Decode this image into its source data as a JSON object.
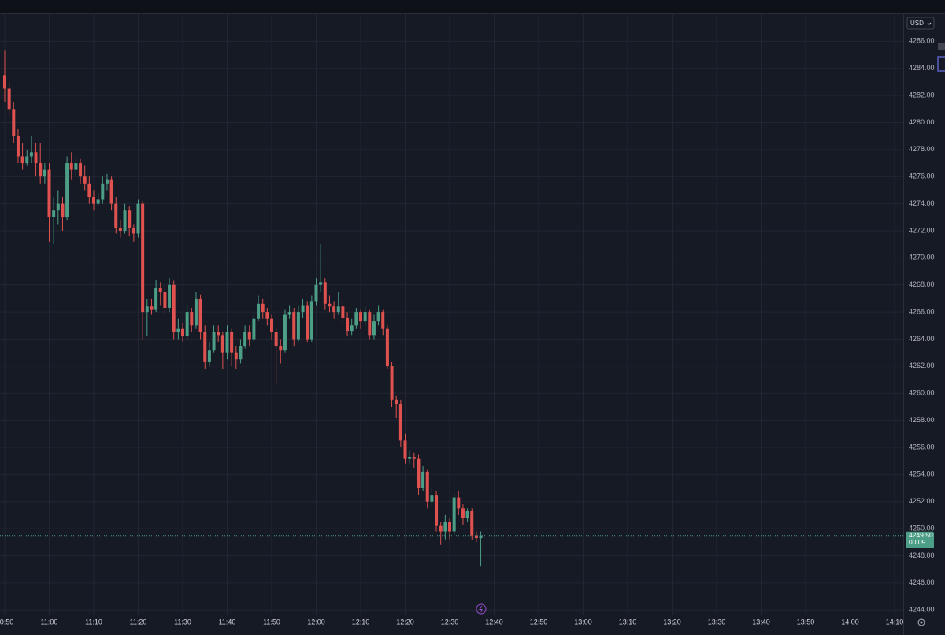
{
  "chart_data": {
    "type": "candlestick",
    "currency": "USD",
    "up_color": "#4c9e86",
    "down_color": "#e0524f",
    "grid": true,
    "ylim": [
      4242.5,
      4288
    ],
    "yticks": [
      {
        "value": 4244,
        "label": "4244.00"
      },
      {
        "value": 4246,
        "label": "4246.00"
      },
      {
        "value": 4248,
        "label": "4248.00"
      },
      {
        "value": 4250,
        "label": "4250.00"
      },
      {
        "value": 4252,
        "label": "4252.00"
      },
      {
        "value": 4254,
        "label": "4254.00"
      },
      {
        "value": 4256,
        "label": "4256.00"
      },
      {
        "value": 4258,
        "label": "4258.00"
      },
      {
        "value": 4260,
        "label": "4260.00"
      },
      {
        "value": 4262,
        "label": "4262.00"
      },
      {
        "value": 4264,
        "label": "4264.00"
      },
      {
        "value": 4266,
        "label": "4266.00"
      },
      {
        "value": 4268,
        "label": "4268.00"
      },
      {
        "value": 4270,
        "label": "4270.00"
      },
      {
        "value": 4272,
        "label": "4272.00"
      },
      {
        "value": 4274,
        "label": "4274.00"
      },
      {
        "value": 4276,
        "label": "4276.00"
      },
      {
        "value": 4278,
        "label": "4278.00"
      },
      {
        "value": 4280,
        "label": "4280.00"
      },
      {
        "value": 4282,
        "label": "4282.00"
      },
      {
        "value": 4284,
        "label": "4284.00"
      },
      {
        "value": 4286,
        "label": "4286.00"
      }
    ],
    "price_label": {
      "value": 4249.5,
      "label": "4249.50"
    },
    "countdown": "00:09",
    "categories": [
      "10:50",
      null,
      null,
      null,
      null,
      null,
      null,
      null,
      null,
      null,
      "11:00",
      null,
      null,
      null,
      null,
      null,
      null,
      null,
      null,
      null,
      "11:10",
      null,
      null,
      null,
      null,
      null,
      null,
      null,
      null,
      null,
      "11:20",
      null,
      null,
      null,
      null,
      null,
      null,
      null,
      null,
      null,
      "11:30",
      null,
      null,
      null,
      null,
      null,
      null,
      null,
      null,
      null,
      "11:40",
      null,
      null,
      null,
      null,
      null,
      null,
      null,
      null,
      null,
      "11:50",
      null,
      null,
      null,
      null,
      null,
      null,
      null,
      null,
      null,
      "12:00",
      null,
      null,
      null,
      null,
      null,
      null,
      null,
      null,
      null,
      "12:10",
      null,
      null,
      null,
      null,
      null,
      null,
      null,
      null,
      null,
      "12:20",
      null,
      null,
      null,
      null,
      null,
      null,
      null,
      null,
      null,
      "12:30",
      null,
      null,
      null,
      null,
      null,
      null,
      null,
      null,
      null,
      "12:40",
      null,
      null,
      null,
      null,
      null,
      null,
      null,
      null,
      null,
      "12:50",
      null,
      null,
      null,
      null,
      null,
      null,
      null,
      null,
      null,
      "13:00",
      null,
      null,
      null,
      null,
      null,
      null,
      null,
      null,
      null,
      "13:10",
      null,
      null,
      null,
      null,
      null,
      null,
      null,
      null,
      null,
      "13:20",
      null,
      null,
      null,
      null,
      null,
      null,
      null,
      null,
      null,
      "13:30",
      null,
      null,
      null,
      null,
      null,
      null,
      null,
      null,
      null,
      "13:40",
      null,
      null,
      null,
      null,
      null,
      null,
      null,
      null,
      null,
      "13:50",
      null,
      null,
      null,
      null,
      null,
      null,
      null,
      null,
      null,
      "14:00",
      null,
      null,
      null,
      null,
      null,
      null,
      null,
      null,
      null,
      "14:10"
    ],
    "open": [
      4283.5,
      4282.5,
      4281,
      4279,
      4277.5,
      4277,
      4277.5,
      4277.8,
      4277,
      4276,
      4276.5,
      4273,
      4273.5,
      4274,
      4273,
      4277,
      4276.5,
      4277,
      4276,
      4275.5,
      4274.5,
      4274,
      4274.3,
      4275.5,
      4275.8,
      4274,
      4272.2,
      4272,
      4273.5,
      4272.2,
      4271.8,
      4274,
      4266,
      4266.4,
      4266.2,
      4267.8,
      4267.5,
      4266.3,
      4268,
      4264.5,
      4264.8,
      4264.2,
      4266,
      4265,
      4267,
      4264.5,
      4262.3,
      4263.2,
      4264.5,
      4264.3,
      4263,
      4264.5,
      4263,
      4262.5,
      4263.5,
      4264.5,
      4264,
      4265.5,
      4266.6,
      4266,
      4265.5,
      4264.5,
      4263.5,
      4263.2,
      4265.8,
      4266,
      4264,
      4266,
      4266.5,
      4264,
      4266.8,
      4268,
      4268.2,
      4266.6,
      4266.4,
      4266,
      4266.4,
      4265.6,
      4264.6,
      4265,
      4266,
      4265.3,
      4266,
      4264.3,
      4265.3,
      4266,
      4264.8,
      4262,
      4259.5,
      4259.2,
      4256.5,
      4255.2,
      4255.3,
      4255.2,
      4253,
      4254.2,
      4252,
      4252.5,
      4250.2,
      4249.8,
      4250.5,
      4249.8,
      4252.3,
      4251.5,
      4250.8,
      4251.3,
      4249.5,
      4249.3,
      null,
      null,
      null,
      null,
      null,
      null,
      null,
      null,
      null,
      null,
      null,
      null,
      null,
      null,
      null,
      null,
      null,
      null,
      null,
      null,
      null,
      null,
      null,
      null,
      null,
      null,
      null,
      null,
      null,
      null,
      null,
      null,
      null,
      null,
      null,
      null,
      null,
      null,
      null,
      null,
      null,
      null,
      null,
      null,
      null,
      null,
      null,
      null,
      null,
      null,
      null,
      null,
      null,
      null,
      null,
      null,
      null,
      null,
      null,
      null,
      null,
      null,
      null,
      null,
      null,
      null,
      null,
      null,
      null,
      null,
      null,
      null,
      null,
      null,
      null,
      null,
      null,
      null,
      null,
      null,
      null,
      null,
      null,
      null,
      null,
      null,
      null,
      null,
      null,
      null,
      null,
      null,
      null
    ],
    "high": [
      4285.3,
      4283,
      4281.5,
      4279.5,
      4278.5,
      4278,
      4279,
      4278.5,
      4278.5,
      4277,
      4277,
      4274.5,
      4275,
      4274.5,
      4277.5,
      4277.8,
      4277.5,
      4277.3,
      4276.8,
      4276,
      4275,
      4274.8,
      4276,
      4276.2,
      4276,
      4274.5,
      4272.8,
      4274,
      4273.8,
      4272.5,
      4274.3,
      4274.2,
      4267,
      4267,
      4268.4,
      4268.2,
      4268,
      4268.5,
      4268.3,
      4265.5,
      4265.2,
      4266.5,
      4266.3,
      4267.5,
      4267.3,
      4265,
      4263.8,
      4265,
      4265,
      4264.5,
      4265,
      4264.8,
      4263.5,
      4264,
      4265,
      4265,
      4266,
      4267.2,
      4267,
      4266.3,
      4265.8,
      4264.8,
      4264,
      4266.2,
      4266.5,
      4266.3,
      4266.5,
      4267,
      4266.8,
      4267.2,
      4268.5,
      4271,
      4268.5,
      4267.2,
      4266.8,
      4267.5,
      4266.8,
      4266,
      4265.5,
      4266.3,
      4266.2,
      4266.4,
      4266.2,
      4265.8,
      4266.5,
      4266.2,
      4265,
      4262.3,
      4259.8,
      4259.5,
      4257,
      4255.8,
      4255.6,
      4255.5,
      4254.6,
      4254.4,
      4253,
      4252.8,
      4250.5,
      4251,
      4250.8,
      4252.6,
      4252.8,
      4251.8,
      4251.5,
      4251.5,
      4249.8,
      4249.8,
      null,
      null,
      null,
      null,
      null,
      null,
      null,
      null,
      null,
      null,
      null,
      null,
      null,
      null,
      null,
      null,
      null,
      null,
      null,
      null,
      null,
      null,
      null,
      null,
      null,
      null,
      null,
      null,
      null,
      null,
      null,
      null,
      null,
      null,
      null,
      null,
      null,
      null,
      null,
      null,
      null,
      null,
      null,
      null,
      null,
      null,
      null,
      null,
      null,
      null,
      null,
      null,
      null,
      null,
      null,
      null,
      null,
      null,
      null,
      null,
      null,
      null,
      null,
      null,
      null,
      null,
      null,
      null,
      null,
      null,
      null,
      null,
      null,
      null,
      null,
      null,
      null,
      null,
      null,
      null,
      null,
      null,
      null,
      null,
      null,
      null,
      null,
      null,
      null,
      null,
      null,
      null,
      null
    ],
    "low": [
      4281.5,
      4280.5,
      4278.5,
      4277,
      4276.5,
      4276.8,
      4277,
      4276,
      4275.5,
      4275.5,
      4271.2,
      4271,
      4272.5,
      4272,
      4272.8,
      4275.8,
      4276,
      4275.5,
      4275,
      4274,
      4273.5,
      4273.8,
      4274,
      4275,
      4273.5,
      4271.8,
      4271.5,
      4271.8,
      4271.6,
      4271.2,
      4271.5,
      4264,
      4264.2,
      4265.8,
      4266,
      4266.5,
      4265.8,
      4266,
      4264,
      4264,
      4263.8,
      4264,
      4264.5,
      4264.8,
      4264,
      4261.8,
      4262,
      4263,
      4263.8,
      4261.8,
      4262.5,
      4262,
      4261.8,
      4262.2,
      4263.3,
      4263.5,
      4263.8,
      4265.3,
      4265.5,
      4265,
      4264,
      4260.6,
      4262.2,
      4263,
      4265.5,
      4263.5,
      4263.8,
      4265.6,
      4263.8,
      4263.8,
      4266.5,
      4267.5,
      4266.2,
      4266,
      4265.5,
      4265.8,
      4265.2,
      4264.2,
      4264.3,
      4264.8,
      4264.8,
      4265,
      4264,
      4264,
      4265,
      4264.3,
      4261.8,
      4259,
      4258.2,
      4256,
      4254.8,
      4254.8,
      4254.5,
      4252.5,
      4252.8,
      4251.5,
      4251.8,
      4249.8,
      4248.8,
      4249.2,
      4249.2,
      4249.5,
      4251,
      4250.3,
      4250.5,
      4249.2,
      4249,
      4247.2,
      null,
      null,
      null,
      null,
      null,
      null,
      null,
      null,
      null,
      null,
      null,
      null,
      null,
      null,
      null,
      null,
      null,
      null,
      null,
      null,
      null,
      null,
      null,
      null,
      null,
      null,
      null,
      null,
      null,
      null,
      null,
      null,
      null,
      null,
      null,
      null,
      null,
      null,
      null,
      null,
      null,
      null,
      null,
      null,
      null,
      null,
      null,
      null,
      null,
      null,
      null,
      null,
      null,
      null,
      null,
      null,
      null,
      null,
      null,
      null,
      null,
      null,
      null,
      null,
      null,
      null,
      null,
      null,
      null,
      null,
      null,
      null,
      null,
      null,
      null,
      null,
      null,
      null,
      null,
      null,
      null,
      null,
      null,
      null,
      null,
      null,
      null,
      null,
      null,
      null,
      null,
      null,
      null
    ],
    "close": [
      4282.5,
      4281,
      4279,
      4277.5,
      4277,
      4277.5,
      4277.8,
      4277,
      4276,
      4276.5,
      4273,
      4273.5,
      4274,
      4273,
      4277,
      4276.5,
      4277,
      4276,
      4275.5,
      4274.5,
      4274,
      4274.3,
      4275.5,
      4275.8,
      4274,
      4272.2,
      4272,
      4273.5,
      4272.2,
      4271.8,
      4274,
      4266,
      4266.4,
      4266.2,
      4267.8,
      4267.5,
      4266.3,
      4268,
      4264.5,
      4264.8,
      4264.2,
      4266,
      4265,
      4267,
      4264.5,
      4262.3,
      4263.2,
      4264.5,
      4264.3,
      4263,
      4264.5,
      4263,
      4262.5,
      4263.5,
      4264.5,
      4264,
      4265.5,
      4266.6,
      4266,
      4265.5,
      4264.5,
      4263.5,
      4263.2,
      4265.8,
      4266,
      4264,
      4266,
      4266.5,
      4264,
      4266.8,
      4268,
      4268.2,
      4266.6,
      4266.4,
      4266,
      4266.4,
      4265.6,
      4264.6,
      4265,
      4266,
      4265.3,
      4266,
      4264.3,
      4265.3,
      4266,
      4264.8,
      4262,
      4259.5,
      4259.2,
      4256.5,
      4255.2,
      4255.3,
      4255.2,
      4253,
      4254.2,
      4252,
      4252.5,
      4250.2,
      4249.8,
      4250.5,
      4249.8,
      4252.3,
      4251.5,
      4250.8,
      4251.3,
      4249.5,
      4249.3,
      4249.5,
      null,
      null,
      null,
      null,
      null,
      null,
      null,
      null,
      null,
      null,
      null,
      null,
      null,
      null,
      null,
      null,
      null,
      null,
      null,
      null,
      null,
      null,
      null,
      null,
      null,
      null,
      null,
      null,
      null,
      null,
      null,
      null,
      null,
      null,
      null,
      null,
      null,
      null,
      null,
      null,
      null,
      null,
      null,
      null,
      null,
      null,
      null,
      null,
      null,
      null,
      null,
      null,
      null,
      null,
      null,
      null,
      null,
      null,
      null,
      null,
      null,
      null,
      null,
      null,
      null,
      null,
      null,
      null,
      null,
      null,
      null,
      null,
      null,
      null,
      null,
      null,
      null,
      null,
      null,
      null,
      null,
      null,
      null,
      null,
      null,
      null,
      null,
      null,
      null,
      null,
      null,
      null,
      null
    ]
  }
}
